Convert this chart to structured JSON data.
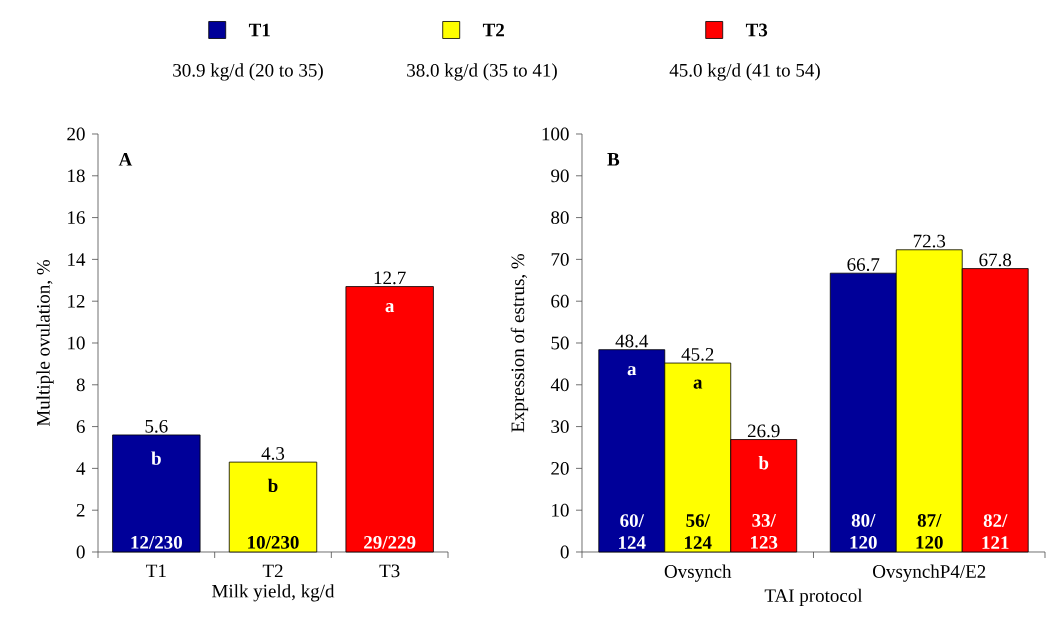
{
  "chart_data": [
    {
      "type": "bar",
      "title": "A",
      "xlabel": "Milk yield, kg/d",
      "ylabel": "Multiple ovulation, %",
      "categories": [
        "T1",
        "T2",
        "T3"
      ],
      "values": [
        5.6,
        4.3,
        12.7
      ],
      "colors": [
        "#000099",
        "#ffff00",
        "#ff0000"
      ],
      "ylim": [
        0,
        20
      ],
      "yticks": [
        0,
        2,
        4,
        6,
        8,
        10,
        12,
        14,
        16,
        18,
        20
      ],
      "data_labels": true,
      "annotations": [
        "b",
        "b",
        "a",
        "12/230",
        "10/230",
        "29/229"
      ]
    },
    {
      "type": "bar",
      "title": "B",
      "xlabel": "TAI protocol",
      "ylabel": "Expression of estrus, %",
      "categories": [
        "Ovsynch",
        "OvsynchP4/E2"
      ],
      "series": [
        {
          "name": "T1",
          "color": "#000099",
          "values": [
            48.4,
            66.7
          ]
        },
        {
          "name": "T2",
          "color": "#ffff00",
          "values": [
            45.2,
            72.3
          ]
        },
        {
          "name": "T3",
          "color": "#ff0000",
          "values": [
            26.9,
            67.8
          ]
        }
      ],
      "ylim": [
        0,
        100
      ],
      "yticks": [
        0,
        10,
        20,
        30,
        40,
        50,
        60,
        70,
        80,
        90,
        100
      ],
      "data_labels": true,
      "legend": "top",
      "annotations": [
        "30.9 kg/d (20 to 35)",
        "38.0 kg/d (35 to 41)",
        "45.0 kg/d (41 to 54)",
        "a",
        "a",
        "b",
        "60/ 124",
        "56/ 124",
        "33/ 123",
        "80/ 120",
        "87/ 120",
        "82/ 121"
      ]
    }
  ]
}
